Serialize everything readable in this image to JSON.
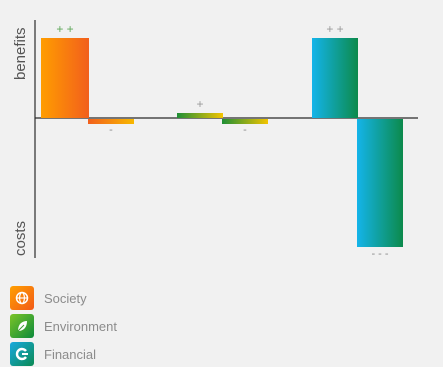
{
  "chart_data": {
    "type": "bar",
    "ylabel_top": "benefits",
    "ylabel_bottom": "costs",
    "ylim": [
      -3,
      2
    ],
    "groups": [
      {
        "bars": [
          {
            "series": "Society",
            "value": 2,
            "label": "+ +"
          },
          {
            "series": "Environment",
            "value": -0.15,
            "label": "-"
          }
        ]
      },
      {
        "bars": [
          {
            "series": "Environment",
            "value": 0.12,
            "label": "+"
          },
          {
            "series": "Environment",
            "value": -0.15,
            "label": "-"
          }
        ]
      },
      {
        "bars": [
          {
            "series": "Financial",
            "value": 2,
            "label": "+ +"
          },
          {
            "series": "Financial",
            "value": -3.2,
            "label": "- - -"
          }
        ]
      }
    ],
    "legend_placement": "bottom-left"
  },
  "legend": [
    {
      "name": "Society",
      "icon": "globe-icon",
      "color": "#f39200",
      "color2": "#f25a18"
    },
    {
      "name": "Environment",
      "icon": "leaf-icon",
      "color": "#5cb531",
      "color2": "#0b8a3a"
    },
    {
      "name": "Financial",
      "icon": "coin-icon",
      "color": "#1aa7dd",
      "color2": "#0b8a52"
    }
  ],
  "colors": {
    "society": [
      "#ff9a00",
      "#f2601a"
    ],
    "environment": [
      "#1f8f36",
      "#f5c700"
    ],
    "financial": [
      "#12b3e8",
      "#0b8a4a"
    ],
    "axis": "#222222",
    "text_muted": "#8c8c8c",
    "label_green": "#5fa85a"
  }
}
